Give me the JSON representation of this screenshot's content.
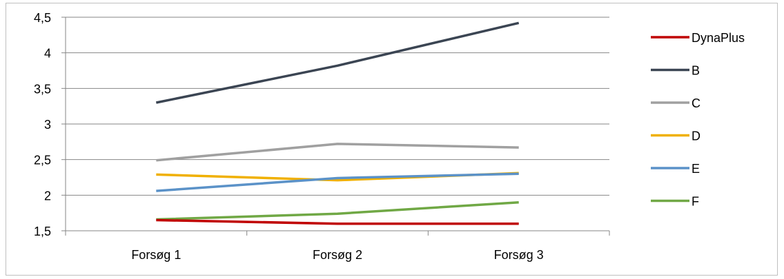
{
  "chart_data": {
    "type": "line",
    "categories": [
      "Forsøg 1",
      "Forsøg 2",
      "Forsøg 3"
    ],
    "ylim": [
      1.5,
      4.5
    ],
    "yticks": [
      "1,5",
      "2",
      "2,5",
      "3",
      "3,5",
      "4",
      "4,5"
    ],
    "ytick_values": [
      1.5,
      2,
      2.5,
      3,
      3.5,
      4,
      4.5
    ],
    "grid": true,
    "legend_position": "right",
    "series": [
      {
        "name": "DynaPlus",
        "color": "#c00000",
        "values": [
          1.65,
          1.6,
          1.6
        ]
      },
      {
        "name": "B",
        "color": "#3b4553",
        "values": [
          3.3,
          3.82,
          4.42
        ]
      },
      {
        "name": "C",
        "color": "#a0a0a0",
        "values": [
          2.49,
          2.72,
          2.67
        ]
      },
      {
        "name": "D",
        "color": "#f0b000",
        "values": [
          2.29,
          2.21,
          2.31
        ]
      },
      {
        "name": "E",
        "color": "#5b92c8",
        "values": [
          2.06,
          2.24,
          2.3
        ]
      },
      {
        "name": "F",
        "color": "#70a845",
        "values": [
          1.66,
          1.74,
          1.9
        ]
      }
    ]
  }
}
